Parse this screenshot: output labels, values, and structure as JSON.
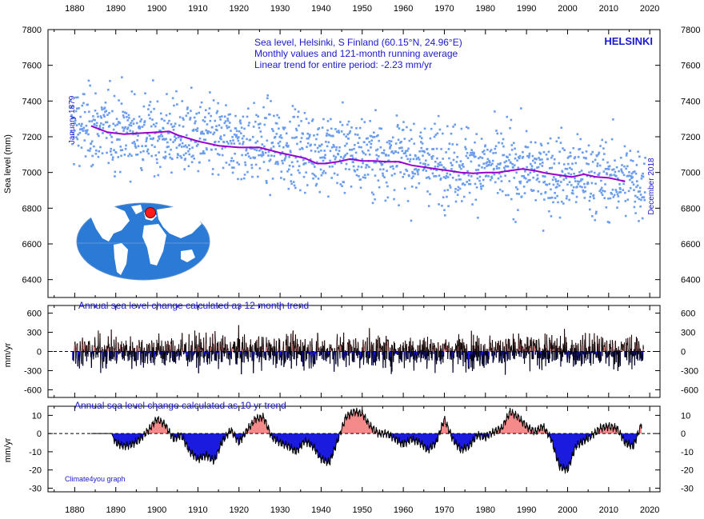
{
  "chart_data": [
    {
      "type": "scatter",
      "panel": "monthly",
      "title_lines": [
        "Sea level, Helsinki, S Finland (60.15°N, 24.96°E)",
        "Monthly values and 121-month running average",
        "Linear trend for entire period: -2.23 mm/yr"
      ],
      "station": "HELSINKI",
      "ylabel": "Sea level (mm)",
      "start_label": "January 1879",
      "end_label": "December 2018",
      "xlim": [
        1873.5,
        2022.5
      ],
      "ylim": [
        6300,
        7800
      ],
      "x_ticks": [
        1880,
        1890,
        1900,
        1910,
        1920,
        1930,
        1940,
        1950,
        1960,
        1970,
        1980,
        1990,
        2000,
        2010,
        2020
      ],
      "y_ticks": [
        6400,
        6600,
        6800,
        7000,
        7200,
        7400,
        7600,
        7800
      ],
      "series": [
        {
          "name": "Monthly values",
          "style": "points",
          "color": "#6a9cf0",
          "x_range": [
            1879.0,
            2018.96
          ],
          "trend_intercept_at_1879": 7260,
          "trend_slope_mm_per_yr": -2.23,
          "approx_spread_mm": 280
        },
        {
          "name": "121-month running average",
          "style": "line",
          "color": "#9900cc",
          "x": [
            1884,
            1888,
            1892,
            1896,
            1900,
            1903,
            1905,
            1910,
            1915,
            1920,
            1925,
            1930,
            1933,
            1936,
            1939,
            1941,
            1944,
            1947,
            1950,
            1953,
            1956,
            1959,
            1962,
            1965,
            1968,
            1971,
            1974,
            1977,
            1980,
            1983,
            1986,
            1989,
            1992,
            1995,
            1998,
            2001,
            2004,
            2007,
            2010,
            2014
          ],
          "y": [
            7260,
            7225,
            7215,
            7220,
            7225,
            7230,
            7210,
            7175,
            7150,
            7140,
            7140,
            7110,
            7095,
            7080,
            7050,
            7050,
            7060,
            7075,
            7065,
            7065,
            7060,
            7060,
            7040,
            7030,
            7020,
            7010,
            7000,
            6995,
            7000,
            7000,
            7010,
            7020,
            7010,
            6995,
            6985,
            6975,
            6990,
            6975,
            6970,
            6950
          ]
        }
      ]
    },
    {
      "type": "area",
      "panel": "12-month",
      "title": "Annual sea level change calculated as 12 month trend",
      "ylabel": "mm/yr",
      "xlim": [
        1873.5,
        2022.5
      ],
      "ylim": [
        -720,
        720
      ],
      "y_ticks": [
        600,
        300,
        0,
        -300,
        -600
      ],
      "x_range": [
        1879.5,
        2018.5
      ],
      "approx_amplitude": 330,
      "positive_color": "#f58a8a",
      "negative_color": "#1b1be0"
    },
    {
      "type": "area",
      "panel": "10-year",
      "title": "Annual sea level change calculated as 10 yr trend",
      "ylabel": "mm/yr",
      "xlim": [
        1873.5,
        2022.5
      ],
      "ylim": [
        -32,
        15
      ],
      "y_ticks": [
        10,
        0,
        -10,
        -20,
        -30
      ],
      "x": [
        1884,
        1889,
        1890,
        1892,
        1894,
        1896,
        1898,
        1900,
        1902,
        1904,
        1906,
        1908,
        1910,
        1912,
        1914,
        1916,
        1918,
        1920,
        1922,
        1924,
        1926,
        1928,
        1930,
        1932,
        1934,
        1936,
        1938,
        1940,
        1942,
        1944,
        1946,
        1948,
        1950,
        1952,
        1954,
        1956,
        1958,
        1960,
        1962,
        1964,
        1966,
        1968,
        1970,
        1972,
        1974,
        1976,
        1978,
        1980,
        1982,
        1984,
        1986,
        1988,
        1990,
        1992,
        1994,
        1996,
        1998,
        2000,
        2002,
        2004,
        2006,
        2008,
        2010,
        2012,
        2014,
        2016,
        2018
      ],
      "y": [
        0,
        0,
        -5,
        -7,
        -6,
        -3,
        2,
        8,
        5,
        -3,
        -1,
        -10,
        -14,
        -12,
        -15,
        -4,
        2,
        -5,
        2,
        8,
        9,
        -2,
        -5,
        -7,
        -10,
        -4,
        -7,
        -14,
        -16,
        -4,
        9,
        12,
        11,
        4,
        0,
        0,
        -3,
        -6,
        -3,
        -5,
        -9,
        -5,
        8,
        -3,
        -9,
        -7,
        -1,
        -2,
        1,
        3,
        12,
        9,
        4,
        1,
        4,
        -3,
        -18,
        -20,
        -7,
        -4,
        -1,
        3,
        4,
        3,
        -5,
        -7,
        5
      ],
      "positive_color": "#f58a8a",
      "negative_color": "#1b1be0"
    }
  ],
  "credit": "Climate4you graph"
}
